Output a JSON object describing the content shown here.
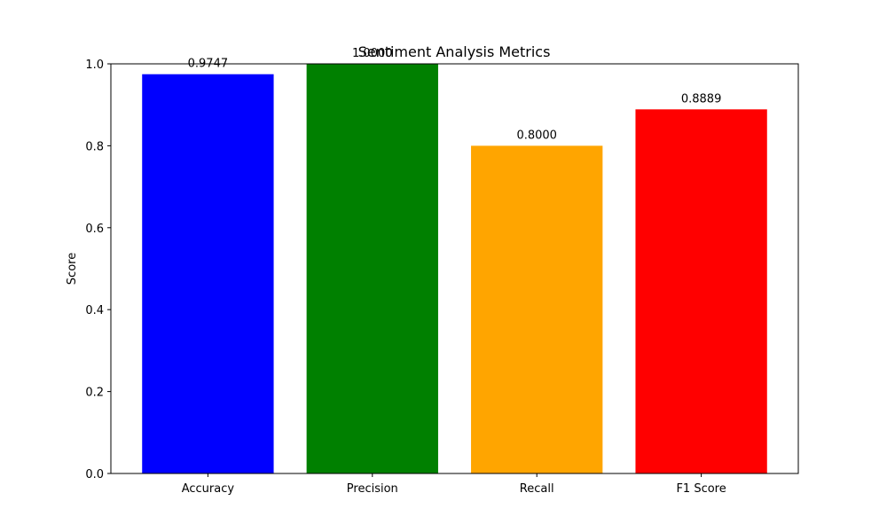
{
  "chart_data": {
    "type": "bar",
    "title": "Sentiment Analysis Metrics",
    "xlabel": "",
    "ylabel": "Score",
    "categories": [
      "Accuracy",
      "Precision",
      "Recall",
      "F1 Score"
    ],
    "values": [
      0.9747,
      1.0,
      0.8,
      0.8889
    ],
    "value_labels": [
      "0.9747",
      "1.0000",
      "0.8000",
      "0.8889"
    ],
    "colors": [
      "#0000ff",
      "#008000",
      "#ffa500",
      "#ff0000"
    ],
    "ylim": [
      0,
      1.0
    ],
    "yticks": [
      0.0,
      0.2,
      0.4,
      0.6,
      0.8,
      1.0
    ],
    "ytick_labels": [
      "0.0",
      "0.2",
      "0.4",
      "0.6",
      "0.8",
      "1.0"
    ],
    "grid": false,
    "legend": "none"
  }
}
